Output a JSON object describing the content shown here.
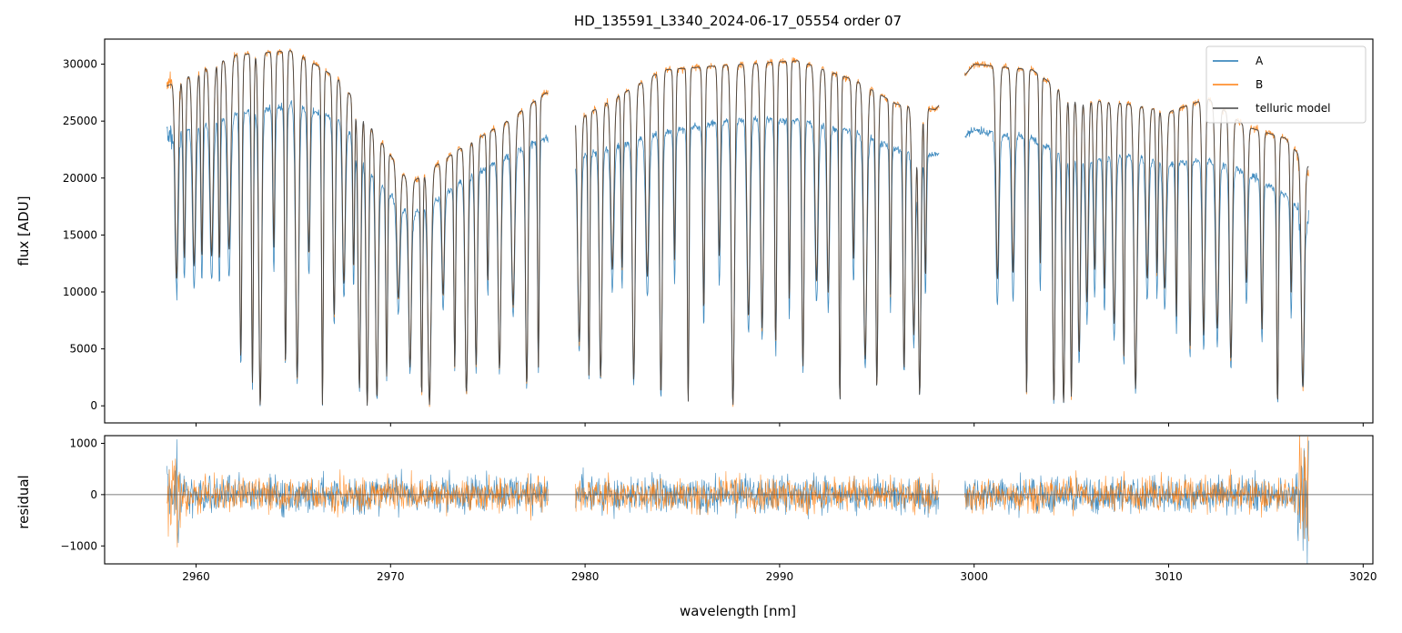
{
  "chart_data": [
    {
      "type": "line",
      "panel": "main",
      "title": "HD_135591_L3340_2024-06-17_05554  order 07",
      "xlabel": "",
      "ylabel": "flux [ADU]",
      "xlim": [
        2955.3,
        3020.5
      ],
      "ylim": [
        -1500,
        32200
      ],
      "yticks": [
        0,
        5000,
        10000,
        15000,
        20000,
        25000,
        30000
      ],
      "ytick_labels": [
        "0",
        "5000",
        "10000",
        "15000",
        "20000",
        "25000",
        "30000"
      ],
      "xticks": [
        2960,
        2970,
        2980,
        2990,
        3000,
        3010,
        3020
      ],
      "legend": {
        "location": "top-right",
        "entries": [
          "A",
          "B",
          "telluric model"
        ]
      },
      "series": [
        {
          "name": "A",
          "color": "#1f77b4",
          "continuum": [
            [
              2958.4,
              23800
            ],
            [
              2962,
              25500
            ],
            [
              2965,
              26500
            ],
            [
              2967.5,
              25000
            ],
            [
              2969,
              20500
            ],
            [
              2971,
              16500
            ],
            [
              2973.5,
              19500
            ],
            [
              2976,
              22000
            ],
            [
              2978,
              23500
            ],
            [
              2980,
              22000
            ],
            [
              2984,
              24000
            ],
            [
              2988,
              25200
            ],
            [
              2991,
              25000
            ],
            [
              2994,
              24000
            ],
            [
              2996,
              22500
            ],
            [
              2998,
              22000
            ],
            [
              3000,
              24200
            ],
            [
              3003,
              23500
            ],
            [
              3005,
              21500
            ],
            [
              3008,
              22000
            ],
            [
              3010,
              21200
            ],
            [
              3012,
              21600
            ],
            [
              3014,
              20500
            ],
            [
              3016,
              18500
            ],
            [
              3017.2,
              16500
            ]
          ]
        },
        {
          "name": "B",
          "color": "#ff7f0e",
          "continuum": [
            [
              2958.4,
              28000
            ],
            [
              2962,
              30800
            ],
            [
              2965,
              31200
            ],
            [
              2967.5,
              28500
            ],
            [
              2969,
              24500
            ],
            [
              2971,
              19500
            ],
            [
              2973.5,
              22500
            ],
            [
              2976,
              25000
            ],
            [
              2978,
              27500
            ],
            [
              2980,
              25500
            ],
            [
              2984,
              29500
            ],
            [
              2988,
              30000
            ],
            [
              2991,
              30300
            ],
            [
              2994,
              28500
            ],
            [
              2996,
              26500
            ],
            [
              2998,
              26000
            ],
            [
              3000,
              30000
            ],
            [
              3003,
              29500
            ],
            [
              3005,
              27000
            ],
            [
              3008,
              26500
            ],
            [
              3010,
              25800
            ],
            [
              3012,
              27000
            ],
            [
              3014,
              24500
            ],
            [
              3016,
              23500
            ],
            [
              3017.2,
              21000
            ]
          ]
        },
        {
          "name": "telluric model",
          "color": "#444444"
        }
      ],
      "absorption_lines_nm": [
        2959.0,
        2959.4,
        2959.9,
        2960.3,
        2960.8,
        2961.2,
        2961.7,
        2962.3,
        2962.9,
        2963.3,
        2964.0,
        2964.6,
        2965.2,
        2965.8,
        2966.5,
        2967.1,
        2967.6,
        2968.1,
        2968.4,
        2968.8,
        2969.3,
        2969.8,
        2970.4,
        2971.0,
        2971.6,
        2972.0,
        2972.7,
        2973.3,
        2973.9,
        2974.4,
        2975.0,
        2975.6,
        2976.3,
        2977.0,
        2977.6,
        2979.7,
        2980.2,
        2980.8,
        2981.4,
        2981.9,
        2982.5,
        2983.2,
        2983.9,
        2984.6,
        2985.3,
        2986.1,
        2986.9,
        2987.6,
        2988.4,
        2989.1,
        2989.8,
        2990.5,
        2991.2,
        2991.9,
        2992.5,
        2993.1,
        2993.8,
        2994.4,
        2995.0,
        2995.7,
        2996.4,
        2996.9,
        2997.2,
        2997.5,
        3001.2,
        3002.0,
        3002.7,
        3003.4,
        3004.1,
        3004.6,
        3005.0,
        3005.4,
        3005.8,
        3006.2,
        3006.7,
        3007.2,
        3007.7,
        3008.3,
        3008.9,
        3009.4,
        3009.8,
        3010.4,
        3011.1,
        3011.8,
        3012.5,
        3013.2,
        3014.0,
        3014.8,
        3015.6,
        3016.3,
        3016.9
      ],
      "gaps_nm": [
        [
          2978.1,
          2979.5
        ],
        [
          2998.2,
          2999.5
        ]
      ]
    },
    {
      "type": "line",
      "panel": "residual",
      "xlabel": "wavelength [nm]",
      "ylabel": "residual",
      "xlim": [
        2955.3,
        3020.5
      ],
      "ylim": [
        -1350,
        1150
      ],
      "yticks": [
        -1000,
        0,
        1000
      ],
      "ytick_labels": [
        "−1000",
        "0",
        "1000"
      ],
      "xticks": [
        2960,
        2970,
        2980,
        2990,
        3000,
        3010,
        3020
      ],
      "xtick_labels": [
        "2960",
        "2970",
        "2980",
        "2990",
        "3000",
        "3010",
        "3020"
      ],
      "zero_line": true,
      "series": [
        {
          "name": "A",
          "color": "#1f77b4",
          "noise_amplitude": 350
        },
        {
          "name": "B",
          "color": "#ff7f0e",
          "noise_amplitude": 330
        }
      ]
    }
  ]
}
